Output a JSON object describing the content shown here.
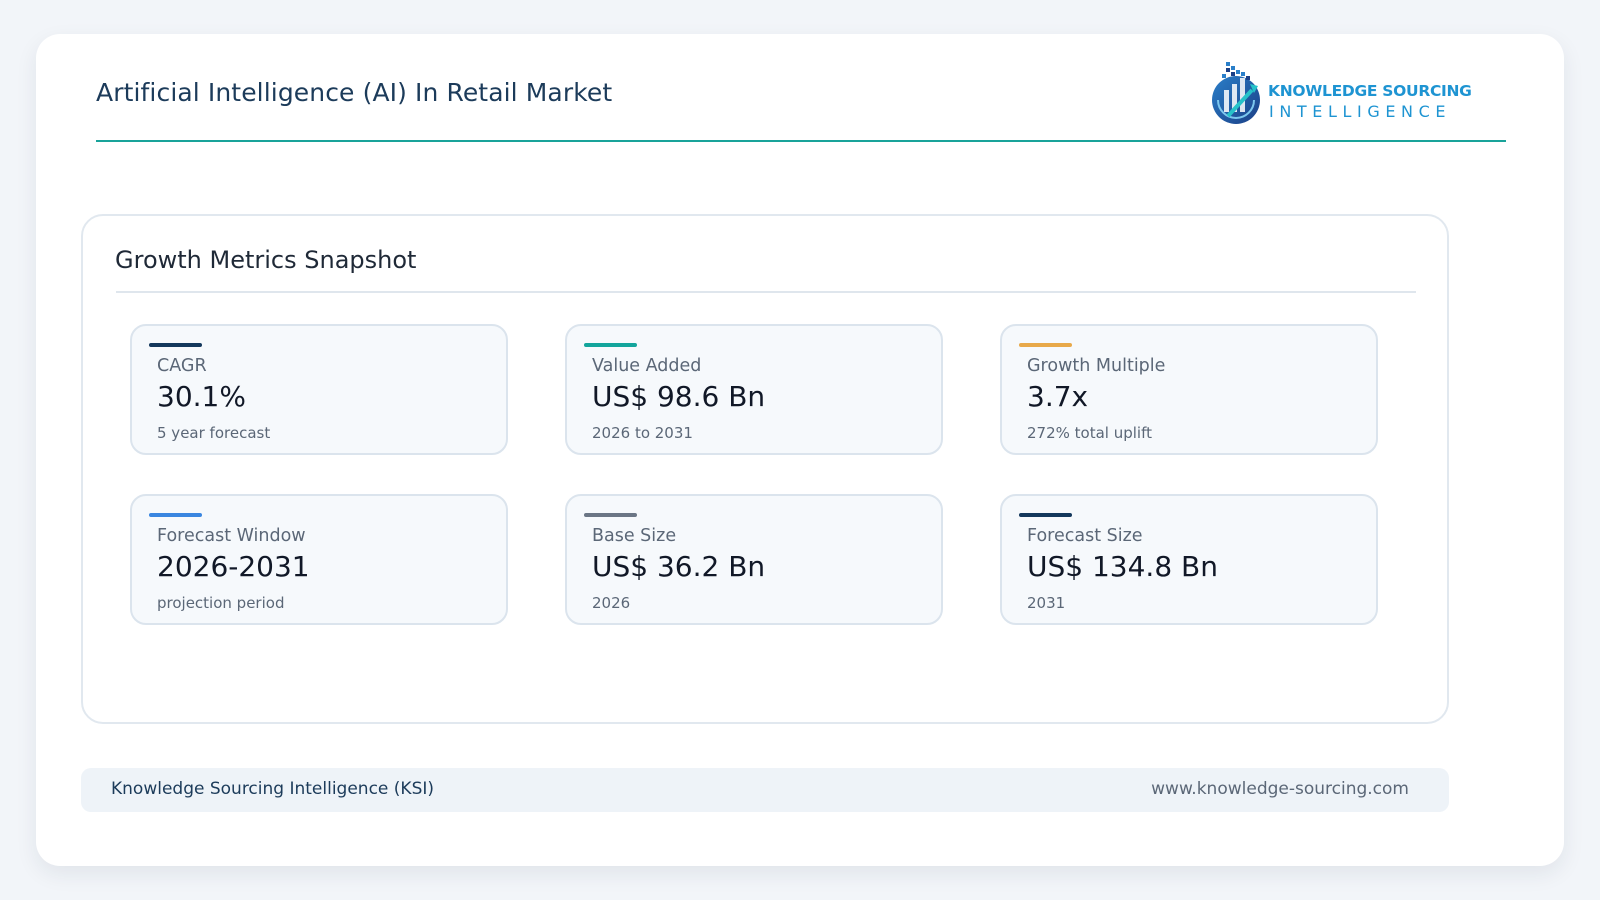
{
  "header": {
    "title": "Artificial Intelligence (AI) In Retail Market",
    "logo": {
      "line1": "KNOWLEDGE SOURCING",
      "line2": "INTELLIGENCE",
      "icon": "ksi-globe-logo-icon",
      "brand_color": "#1e94d2"
    }
  },
  "panel": {
    "title": "Growth Metrics Snapshot",
    "metrics": [
      {
        "label": "CAGR",
        "value": "30.1%",
        "note": "5 year forecast",
        "accent": "#14385c"
      },
      {
        "label": "Value Added",
        "value": "US$ 98.6 Bn",
        "note": "2026 to 2031",
        "accent": "#13a59c"
      },
      {
        "label": "Growth Multiple",
        "value": "3.7x",
        "note": "272% total uplift",
        "accent": "#e8a94a"
      },
      {
        "label": "Forecast Window",
        "value": "2026-2031",
        "note": "projection period",
        "accent": "#3a86e0"
      },
      {
        "label": "Base Size",
        "value": "US$ 36.2 Bn",
        "note": "2026",
        "accent": "#6b7685"
      },
      {
        "label": "Forecast Size",
        "value": "US$ 134.8 Bn",
        "note": "2031",
        "accent": "#14385c"
      }
    ]
  },
  "footer": {
    "left": "Knowledge Sourcing Intelligence (KSI)",
    "right": "www.knowledge-sourcing.com"
  },
  "colors": {
    "divider_teal": "#19a39a",
    "background": "#f2f5f9"
  }
}
